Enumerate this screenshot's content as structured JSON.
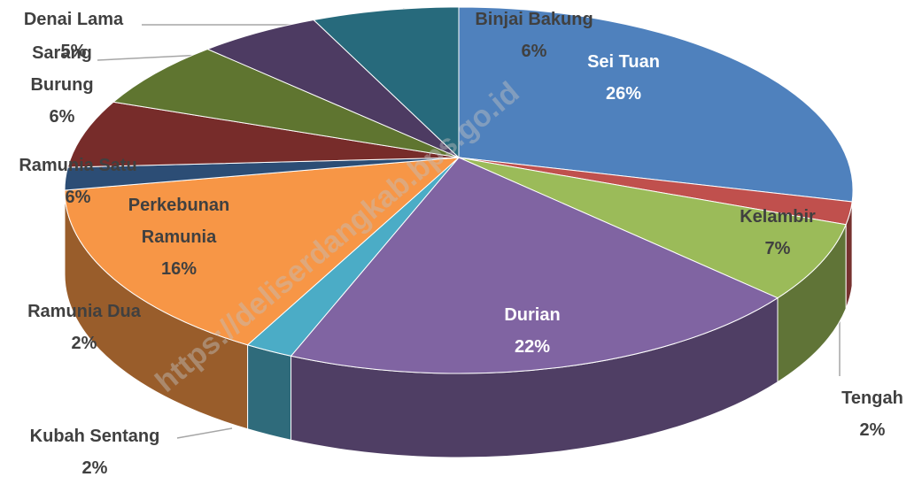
{
  "chart_data": {
    "type": "pie3d",
    "categories": [
      "Sei Tuan",
      "Tengah",
      "Kelambir",
      "Durian",
      "Kubah Sentang",
      "Perkebunan Ramunia",
      "Ramunia Dua",
      "Ramunia Satu",
      "Sarang Burung",
      "Denai Lama",
      "Binjai Bakung"
    ],
    "values": [
      26,
      2,
      7,
      22,
      2,
      16,
      2,
      6,
      6,
      5,
      6
    ],
    "value_labels": [
      "26%",
      "2%",
      "7%",
      "22%",
      "2%",
      "16%",
      "2%",
      "6%",
      "6%",
      "5%",
      "6%"
    ],
    "colors": [
      "#4f81bd",
      "#c0504d",
      "#9bbb59",
      "#8064a2",
      "#4bacc6",
      "#f79646",
      "#2c4d75",
      "#772c2a",
      "#5f7530",
      "#4d3b62",
      "#276a7c"
    ],
    "watermark": "https://deliserdangkab.bps.go.id"
  }
}
